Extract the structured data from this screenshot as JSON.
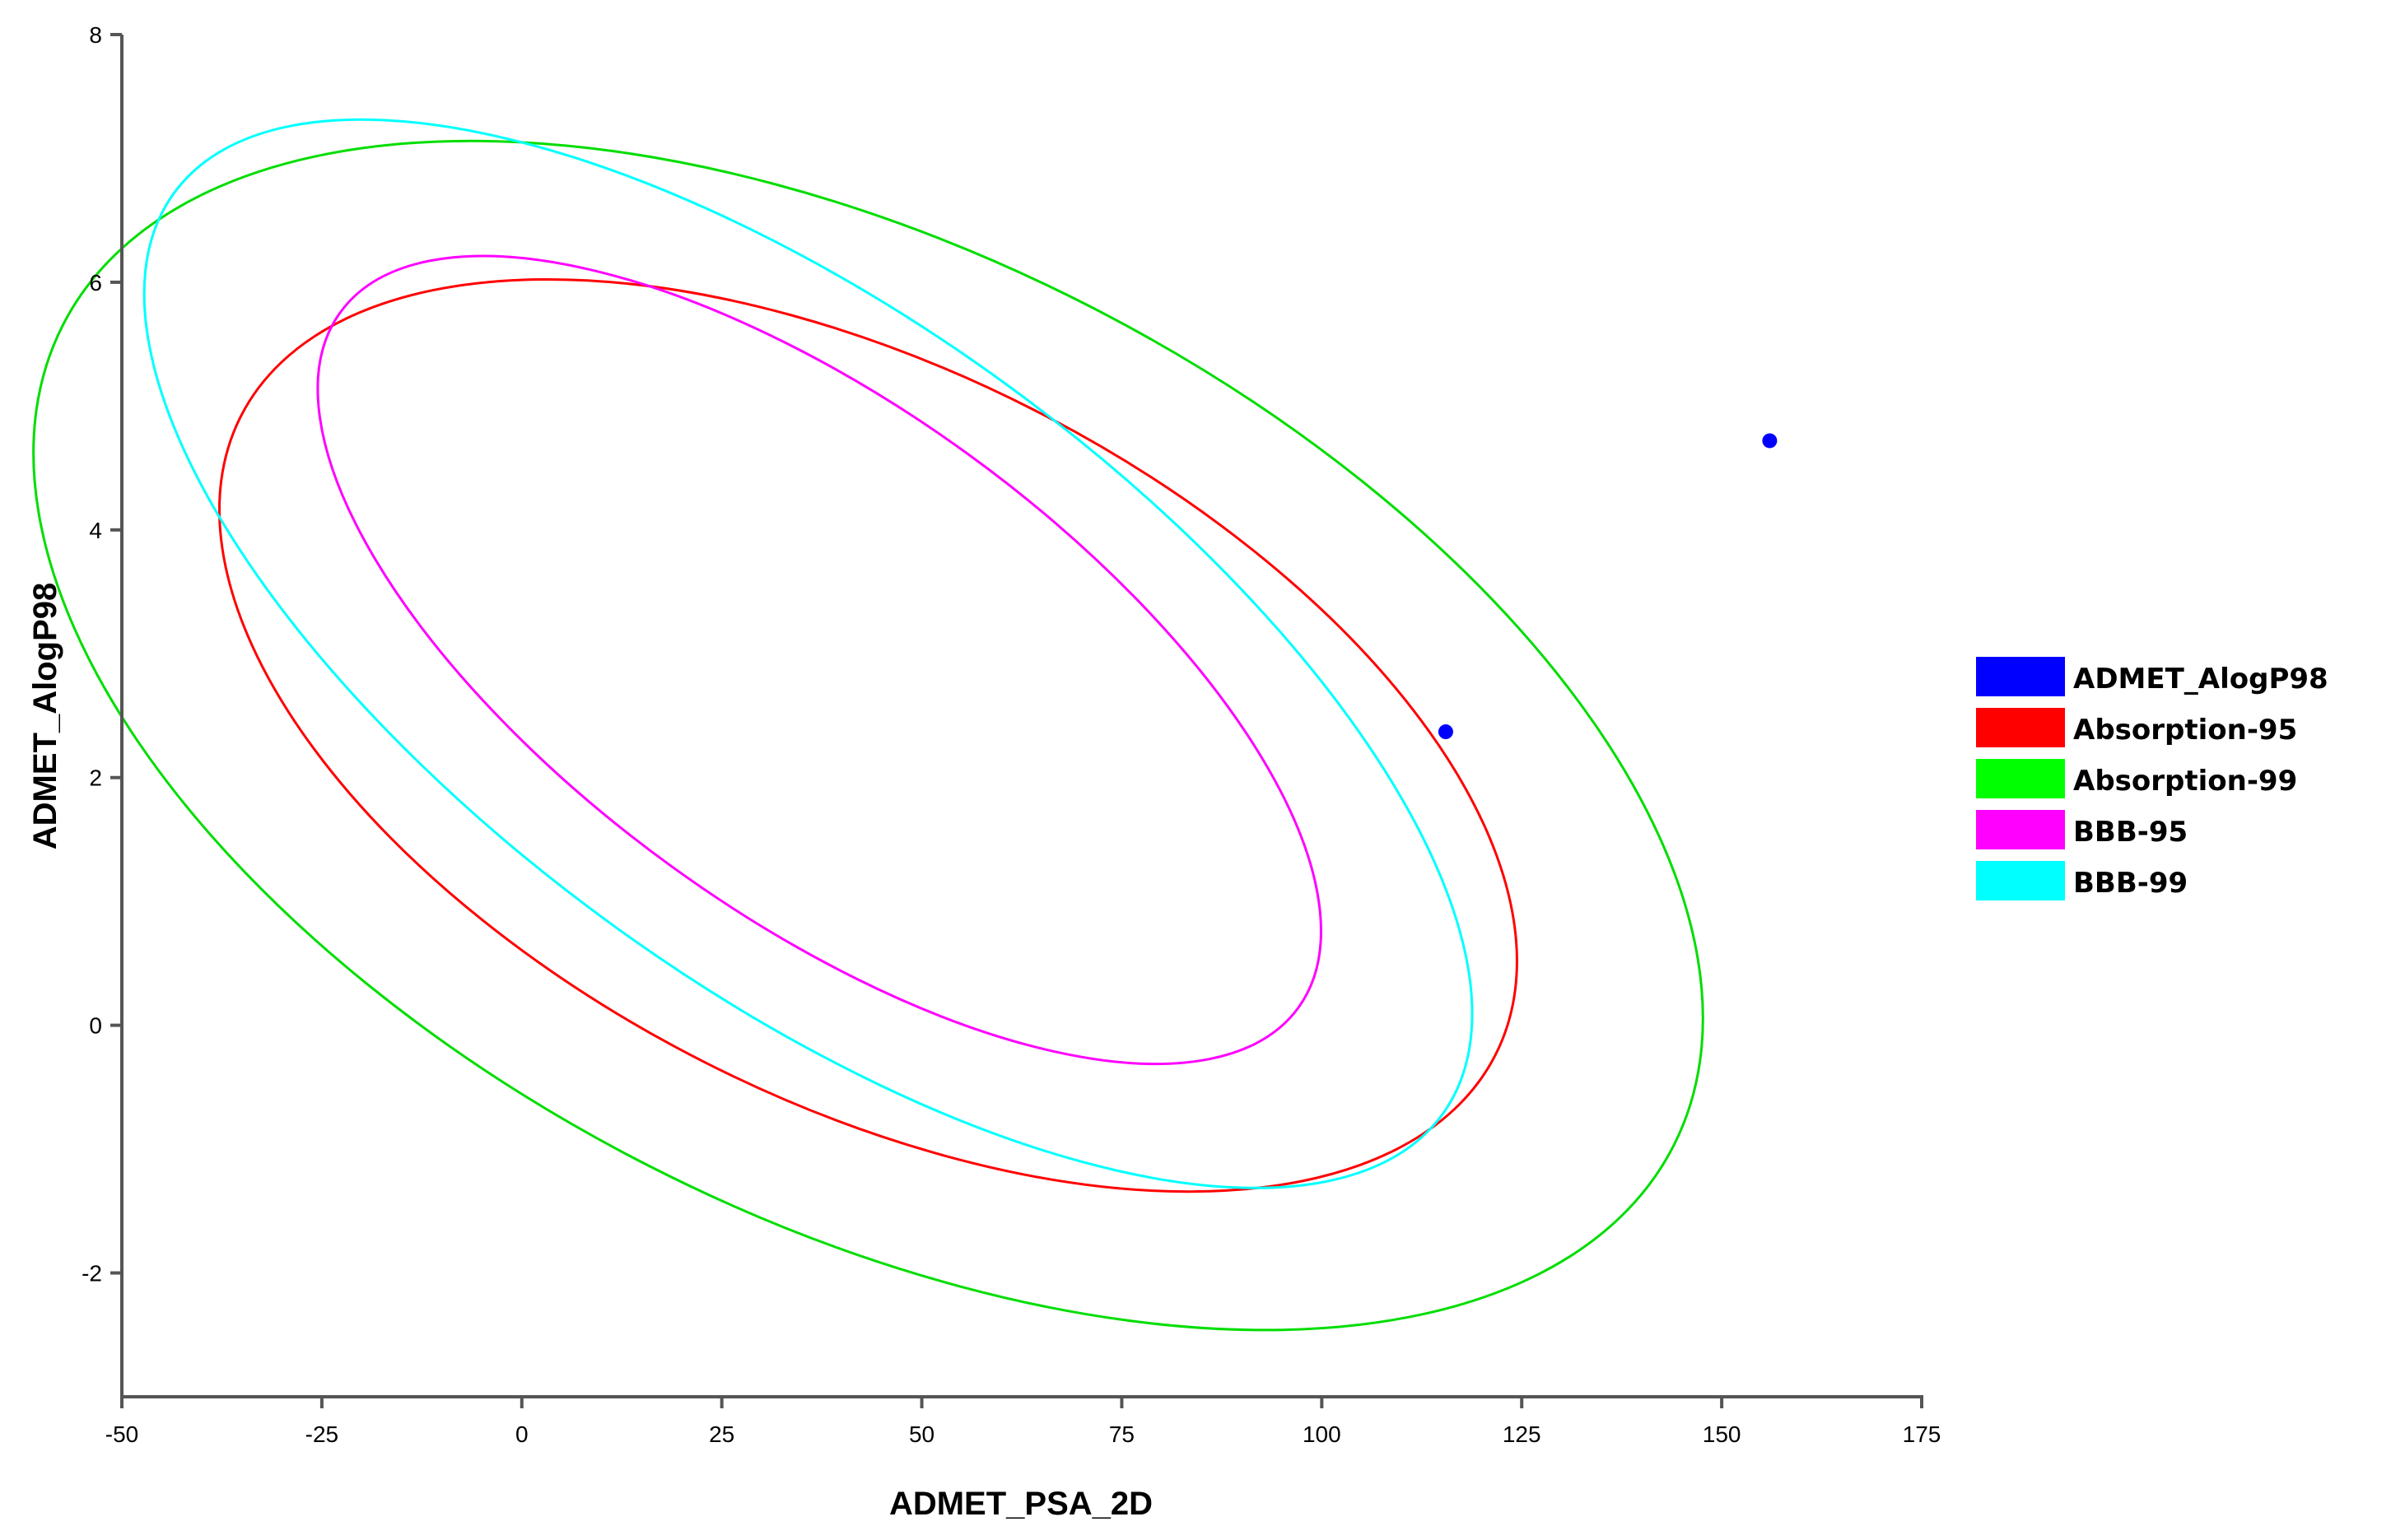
{
  "chart_data": {
    "type": "scatter",
    "xlabel": "ADMET_PSA_2D",
    "ylabel": "ADMET_AlogP98",
    "xlim": [
      -50,
      175
    ],
    "ylim": [
      -3,
      8
    ],
    "x_ticks": [
      -50,
      -25,
      0,
      25,
      50,
      75,
      100,
      125,
      150,
      175
    ],
    "y_ticks": [
      -2,
      0,
      2,
      4,
      6,
      8
    ],
    "grid": false,
    "legend_position": "right",
    "points": {
      "name": "ADMET_AlogP98",
      "color": "#0000ff",
      "x": [
        115.5,
        156
      ],
      "y": [
        2.37,
        4.72
      ]
    },
    "ellipses": [
      {
        "name": "Absorption-95",
        "color": "#ff0000",
        "cx": 43.3,
        "cy": 2.34,
        "a": 88.0,
        "b": 2.95,
        "angle_deg": -3.0
      },
      {
        "name": "Absorption-99",
        "color": "#00dd00",
        "cx": 43.3,
        "cy": 2.34,
        "a": 113.0,
        "b": 3.9,
        "angle_deg": -3.0
      },
      {
        "name": "BBB-95",
        "color": "#ff00ff",
        "cx": 37.2,
        "cy": 2.95,
        "a": 74.0,
        "b": 2.05,
        "angle_deg": -4.6
      },
      {
        "name": "BBB-99",
        "color": "#00ffff",
        "cx": 35.8,
        "cy": 3.0,
        "a": 98.0,
        "b": 2.7,
        "angle_deg": -4.6
      }
    ],
    "legend": [
      {
        "label": "ADMET_AlogP98",
        "color": "#0000ff"
      },
      {
        "label": "Absorption-95",
        "color": "#ff0000"
      },
      {
        "label": "Absorption-99",
        "color": "#00ff00"
      },
      {
        "label": "BBB-95",
        "color": "#ff00ff"
      },
      {
        "label": "BBB-99",
        "color": "#00ffff"
      }
    ]
  }
}
